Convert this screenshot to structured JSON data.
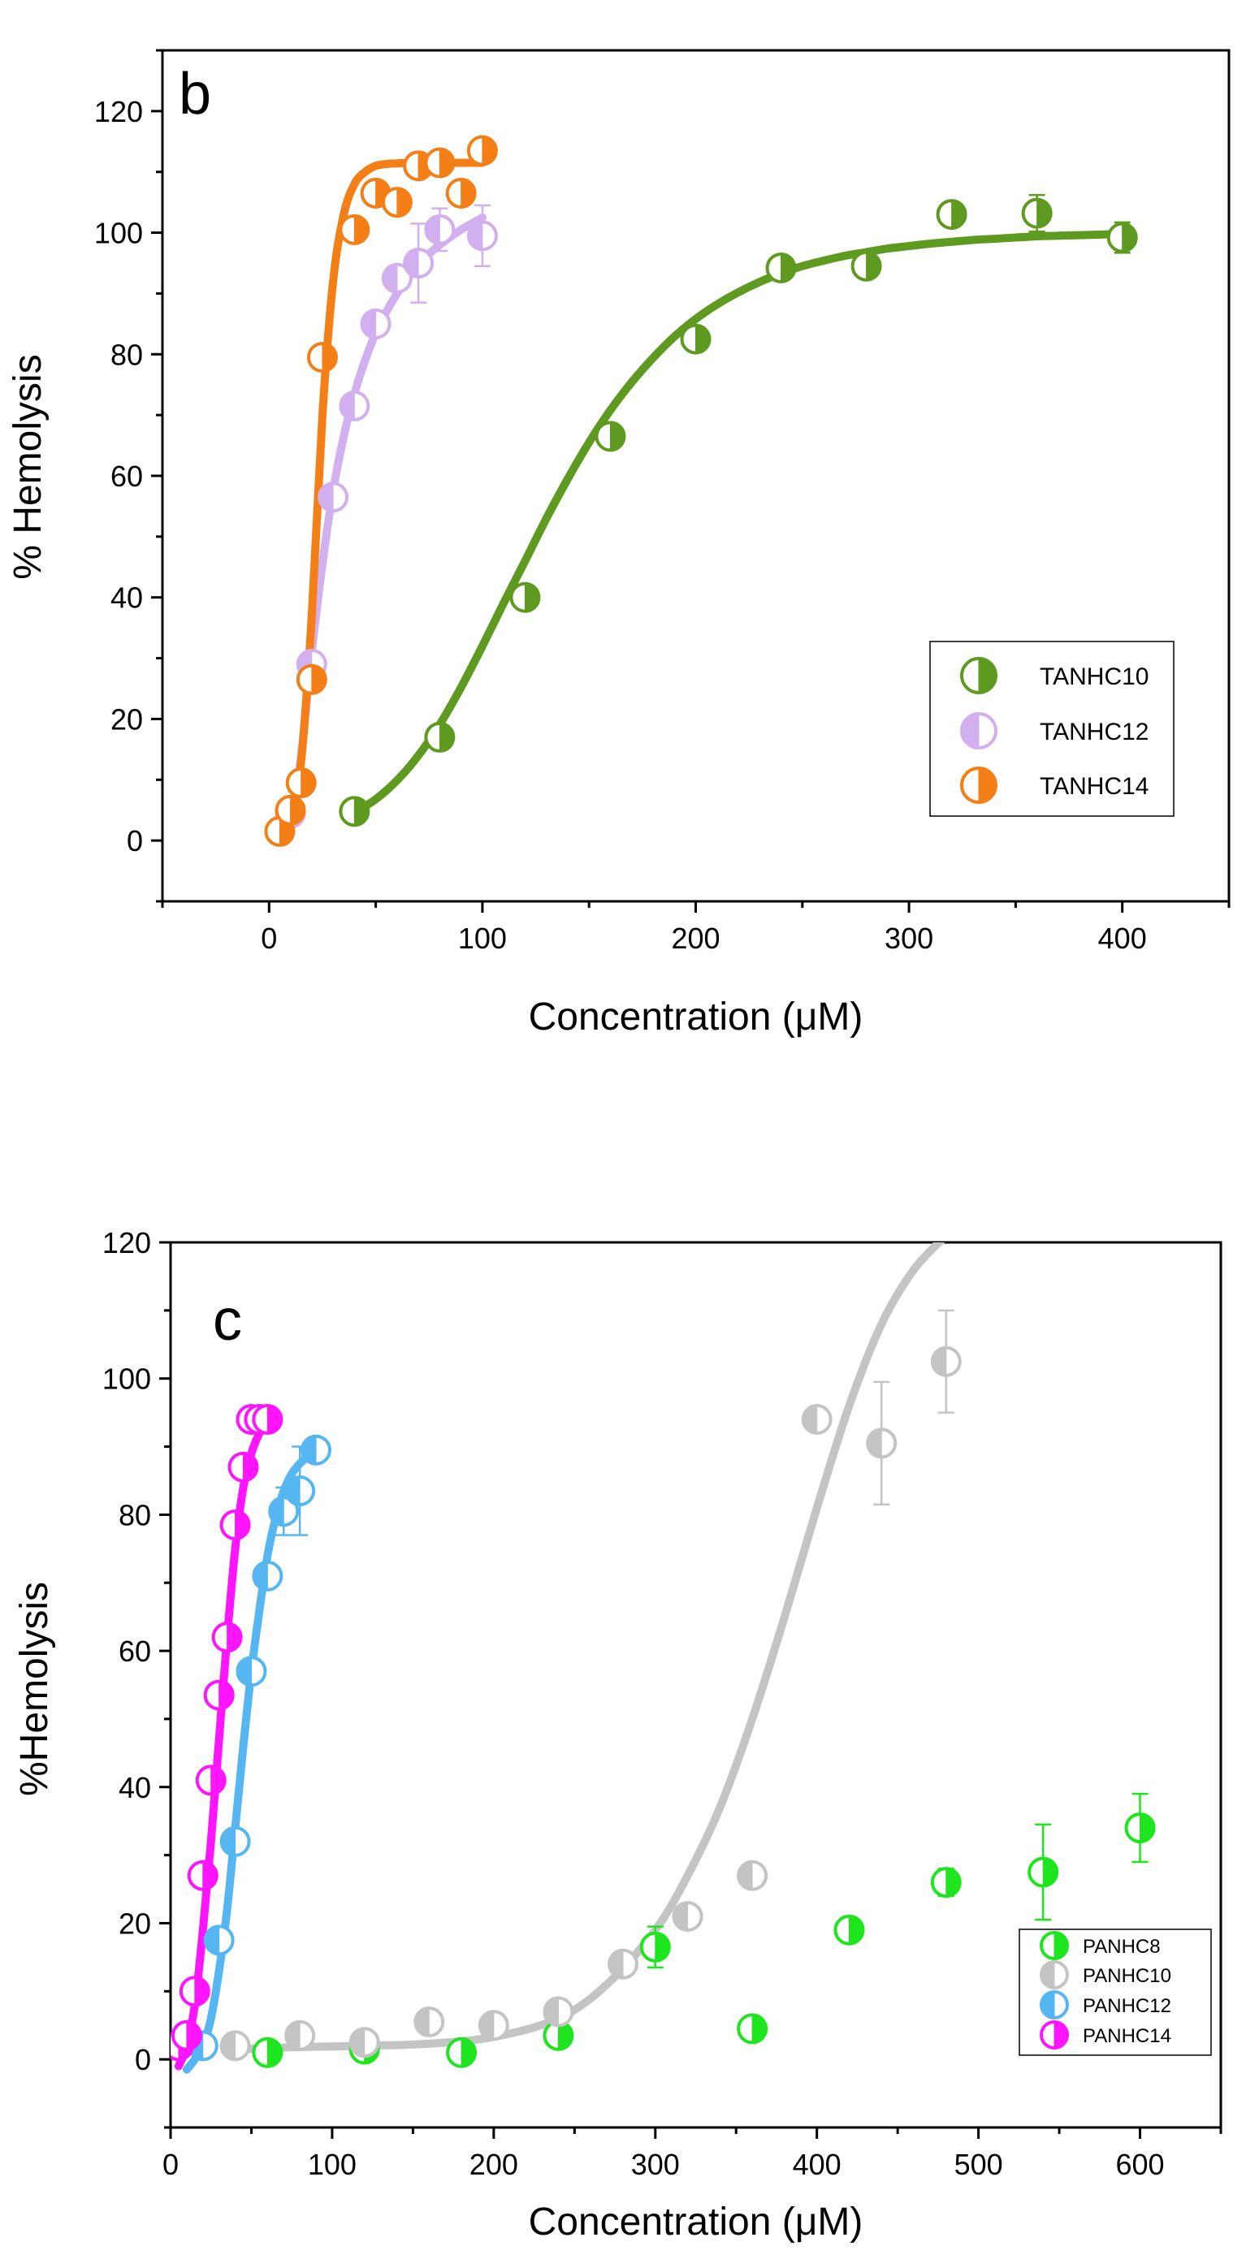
{
  "chart_data": [
    {
      "type": "scatter",
      "panel_label": "b",
      "xlabel": "Concentration (μM)",
      "ylabel": "% Hemolysis",
      "xlim": [
        -50,
        450
      ],
      "ylim": [
        -10,
        130
      ],
      "xticks": [
        0,
        100,
        200,
        300,
        400
      ],
      "yticks": [
        0,
        20,
        40,
        60,
        80,
        100,
        120
      ],
      "xtick_labels": [
        "0",
        "100",
        "200",
        "300",
        "400"
      ],
      "ytick_labels": [
        "0",
        "20",
        "40",
        "60",
        "80",
        "100",
        "120"
      ],
      "grid": false,
      "legend_position": "bottom-right",
      "marker": "half-filled circle",
      "series": [
        {
          "name": "TANHC10",
          "color": "#5e9a1f",
          "fill_side": "right",
          "x": [
            40,
            80,
            120,
            160,
            200,
            240,
            280,
            320,
            360,
            400
          ],
          "y": [
            4.8,
            17,
            40,
            66.5,
            82.5,
            94.2,
            94.5,
            103,
            103.2,
            99.2
          ],
          "y_err": [
            0,
            1.5,
            0,
            0,
            0,
            1.5,
            0,
            0,
            3,
            2.5
          ],
          "fit_x": [
            40,
            50,
            60,
            70,
            80,
            90,
            100,
            110,
            120,
            130,
            140,
            150,
            160,
            170,
            180,
            190,
            200,
            210,
            220,
            230,
            240,
            250,
            260,
            270,
            280,
            290,
            300,
            310,
            320,
            330,
            340,
            350,
            360,
            370,
            380,
            390,
            400
          ],
          "fit_y": [
            4.6,
            6.8,
            9.9,
            14,
            19.1,
            25.2,
            32,
            39.1,
            46,
            53,
            59.5,
            65.5,
            70.8,
            75.4,
            79.4,
            82.9,
            85.8,
            88.2,
            90.2,
            91.9,
            93.3,
            94.5,
            95.4,
            96.2,
            96.8,
            97.4,
            97.8,
            98.2,
            98.5,
            98.8,
            99,
            99.2,
            99.4,
            99.5,
            99.6,
            99.7,
            99.8
          ]
        },
        {
          "name": "TANHC12",
          "color": "#d2b0ef",
          "fill_side": "left",
          "x": [
            10,
            20,
            30,
            40,
            50,
            60,
            70,
            80,
            100
          ],
          "y": [
            4.5,
            29,
            56.5,
            71.5,
            85,
            92.5,
            95,
            100.5,
            99.5
          ],
          "y_err": [
            0,
            0,
            0,
            0,
            0,
            2,
            6.5,
            3.5,
            5
          ],
          "fit_x": [
            10,
            15,
            20,
            25,
            30,
            35,
            40,
            45,
            50,
            55,
            60,
            65,
            70,
            75,
            80,
            85,
            90,
            95,
            100
          ],
          "fit_y": [
            2,
            14,
            31,
            45.5,
            57.5,
            66.5,
            73.5,
            79,
            83.5,
            87,
            90,
            92.5,
            94.5,
            96.5,
            98,
            99.3,
            100.5,
            101.5,
            102.5
          ]
        },
        {
          "name": "TANHC14",
          "color": "#f57f17",
          "fill_side": "right",
          "x": [
            5,
            10,
            15,
            20,
            25,
            40,
            50,
            60,
            70,
            80,
            90,
            100
          ],
          "y": [
            1.5,
            5,
            9.5,
            26.5,
            79.5,
            100.5,
            106.5,
            105,
            111,
            111.5,
            106.5,
            113.5
          ],
          "y_err": [
            0,
            0,
            0,
            0,
            0,
            0,
            0,
            0,
            0,
            0,
            0,
            0
          ],
          "fit_x": [
            5,
            10,
            15,
            20,
            25,
            30,
            35,
            40,
            45,
            50,
            55,
            60,
            65,
            70,
            75,
            80,
            85,
            90,
            95,
            100
          ],
          "fit_y": [
            1,
            3,
            13,
            37,
            70,
            92,
            103,
            108,
            110,
            111,
            111.3,
            111.4,
            111.5,
            111.5,
            111.5,
            111.5,
            111.5,
            111.5,
            111.5,
            111.5
          ]
        }
      ]
    },
    {
      "type": "scatter",
      "panel_label": "c",
      "xlabel": "Concentration (μM)",
      "ylabel": "%Hemolysis",
      "xlim": [
        0,
        650
      ],
      "ylim": [
        -10,
        120
      ],
      "xticks": [
        0,
        100,
        200,
        300,
        400,
        500,
        600
      ],
      "yticks": [
        0,
        20,
        40,
        60,
        80,
        100,
        120
      ],
      "xtick_labels": [
        "0",
        "100",
        "200",
        "300",
        "400",
        "500",
        "600"
      ],
      "ytick_labels": [
        "0",
        "20",
        "40",
        "60",
        "80",
        "100",
        "120"
      ],
      "grid": false,
      "legend_position": "bottom-right",
      "marker": "half-filled circle",
      "series": [
        {
          "name": "PANHC8",
          "color": "#1ee61e",
          "fill_side": "right",
          "x": [
            60,
            120,
            180,
            240,
            300,
            360,
            420,
            480,
            540,
            600
          ],
          "y": [
            1,
            1.5,
            1,
            3.5,
            16.5,
            4.5,
            19,
            26,
            27.5,
            34
          ],
          "y_err": [
            0,
            0,
            0,
            0,
            3,
            0,
            0,
            2,
            7,
            5
          ],
          "fit_x": [],
          "fit_y": []
        },
        {
          "name": "PANHC10",
          "color": "#c4c4c4",
          "fill_side": "left",
          "x": [
            40,
            80,
            120,
            160,
            200,
            240,
            280,
            320,
            360,
            400,
            440,
            480
          ],
          "y": [
            2,
            3.5,
            2.5,
            5.5,
            5,
            7,
            14,
            21,
            27,
            94,
            90.5,
            102.5
          ],
          "y_err": [
            0,
            0,
            0,
            0,
            0,
            0,
            0,
            0,
            0,
            0,
            9,
            7.5
          ],
          "fit_x": [
            40,
            80,
            120,
            160,
            200,
            240,
            270,
            300,
            320,
            340,
            360,
            380,
            400,
            420,
            440,
            460,
            480
          ],
          "fit_y": [
            1.5,
            1.8,
            2,
            2.3,
            3.3,
            6,
            11,
            19,
            27,
            37,
            50,
            65,
            81,
            96,
            108,
            116,
            121
          ]
        },
        {
          "name": "PANHC12",
          "color": "#55b6f2",
          "fill_side": "left",
          "x": [
            10,
            20,
            30,
            40,
            50,
            60,
            70,
            80,
            90
          ],
          "y": [
            3,
            2,
            17.5,
            32,
            57,
            71,
            80.5,
            83.5,
            89.5
          ],
          "y_err": [
            0,
            0,
            0,
            0,
            0,
            0,
            3.5,
            6.5,
            1
          ],
          "fit_x": [
            10,
            15,
            20,
            25,
            30,
            35,
            40,
            45,
            50,
            55,
            60,
            65,
            70,
            75,
            80,
            85,
            90
          ],
          "fit_y": [
            -1.5,
            0,
            2,
            6,
            13,
            22,
            34,
            46,
            57,
            66,
            74,
            79.5,
            83.5,
            86,
            87.5,
            88.5,
            89
          ]
        },
        {
          "name": "PANHC14",
          "color": "#ff14ff",
          "fill_side": "right",
          "x": [
            5,
            10,
            15,
            20,
            25,
            30,
            35,
            40,
            45,
            50,
            55,
            60
          ],
          "y": [
            2,
            3.5,
            10,
            27,
            41,
            53.5,
            62,
            78.5,
            87,
            94,
            94,
            94
          ],
          "y_err": [
            0,
            0,
            0,
            0,
            0,
            0,
            0,
            0,
            0,
            0,
            0,
            0
          ],
          "fit_x": [
            5,
            10,
            15,
            20,
            25,
            30,
            35,
            40,
            45,
            50,
            55,
            60
          ],
          "fit_y": [
            -1,
            2,
            8,
            19,
            32,
            47,
            62,
            75,
            84,
            89,
            92,
            94
          ]
        }
      ]
    }
  ]
}
